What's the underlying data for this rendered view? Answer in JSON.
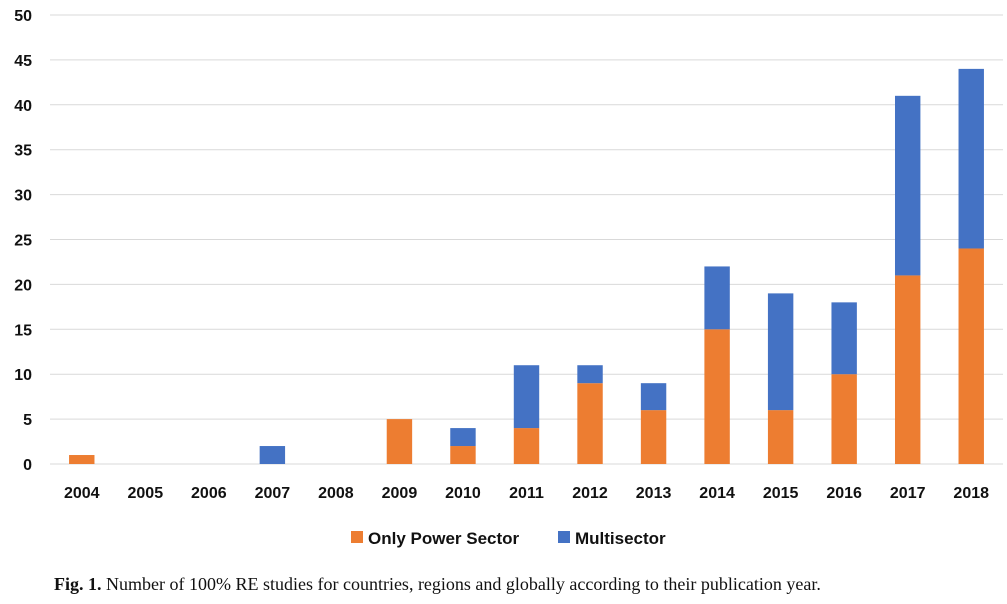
{
  "chart_data": {
    "type": "bar",
    "stacked": true,
    "categories": [
      "2004",
      "2005",
      "2006",
      "2007",
      "2008",
      "2009",
      "2010",
      "2011",
      "2012",
      "2013",
      "2014",
      "2015",
      "2016",
      "2017",
      "2018"
    ],
    "series": [
      {
        "name": "Only Power Sector",
        "color": "#ED7D31",
        "values": [
          1,
          0,
          0,
          0,
          0,
          5,
          2,
          4,
          9,
          6,
          15,
          6,
          10,
          21,
          24
        ]
      },
      {
        "name": "Multisector",
        "color": "#4472C4",
        "values": [
          0,
          0,
          0,
          2,
          0,
          0,
          2,
          7,
          2,
          3,
          7,
          13,
          8,
          20,
          20
        ]
      }
    ],
    "ylim": [
      0,
      50
    ],
    "yticks": [
      0,
      5,
      10,
      15,
      20,
      25,
      30,
      35,
      40,
      45,
      50
    ],
    "grid": true,
    "legend": "bottom",
    "title": "",
    "xlabel": "",
    "ylabel": ""
  },
  "caption": {
    "prefix": "Fig. 1.",
    "text": "Number of 100% RE studies for countries, regions and globally according to their publication year."
  }
}
